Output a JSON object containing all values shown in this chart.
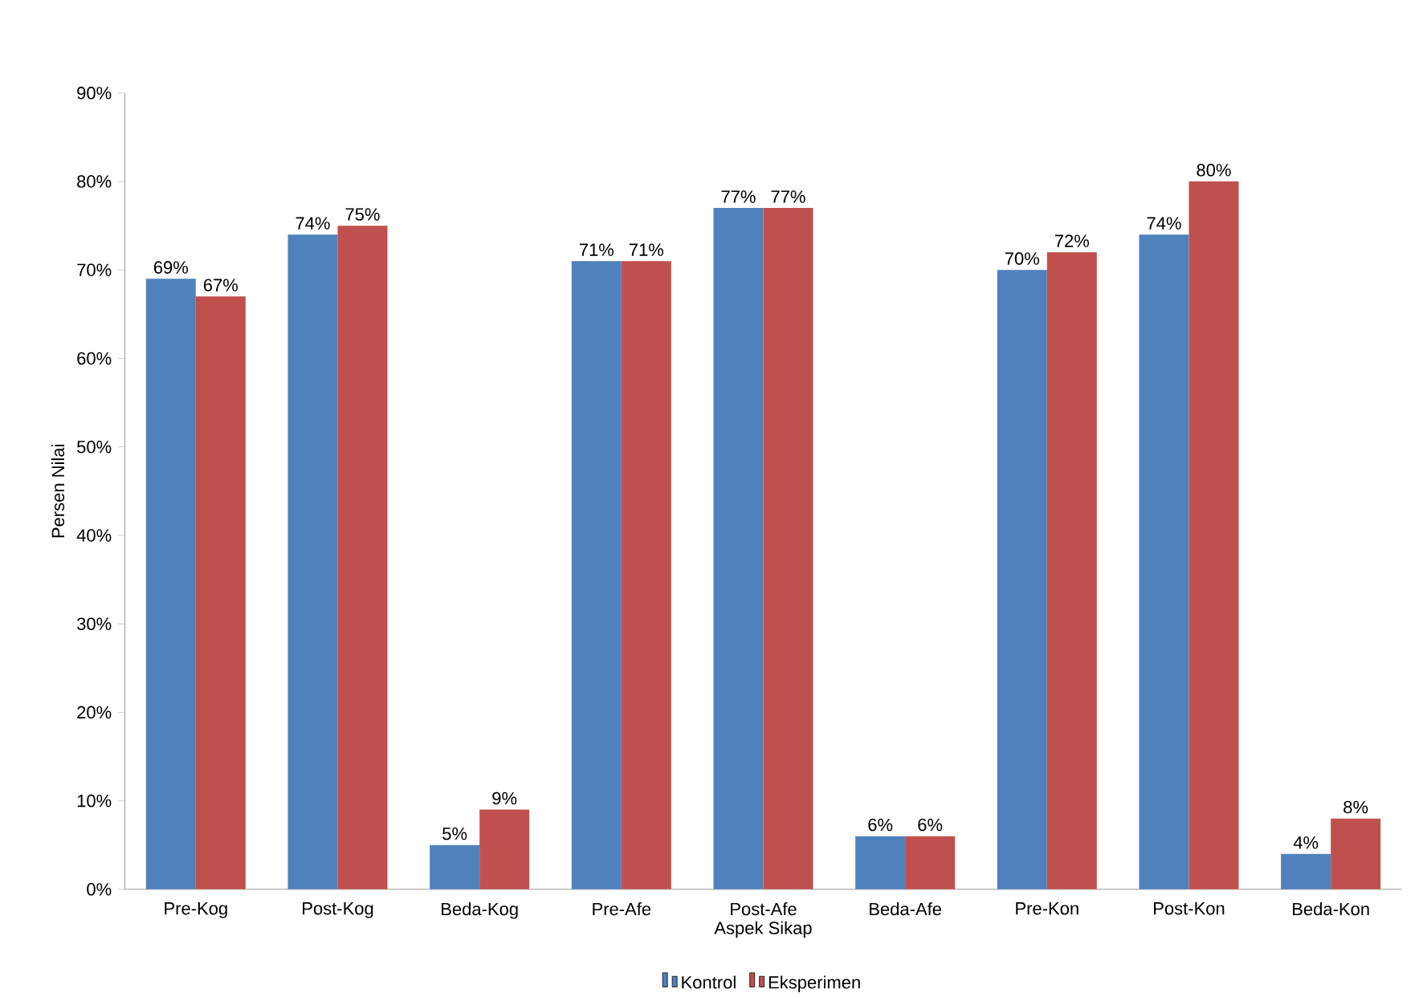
{
  "chart_data": {
    "type": "bar",
    "xlabel": "Aspek Sikap",
    "ylabel": "Persen Nilai",
    "categories": [
      "Pre-Kog",
      "Post-Kog",
      "Beda-Kog",
      "Pre-Afe",
      "Post-Afe",
      "Beda-Afe",
      "Pre-Kon",
      "Post-Kon",
      "Beda-Kon"
    ],
    "series": [
      {
        "name": "Kontrol",
        "color": "#4f81bd",
        "values": [
          69,
          74,
          5,
          71,
          77,
          6,
          70,
          74,
          4
        ],
        "value_labels": [
          "69%",
          "74%",
          "5%",
          "71%",
          "77%",
          "6%",
          "70%",
          "74%",
          "4%"
        ]
      },
      {
        "name": "Eksperimen",
        "color": "#c0504d",
        "values": [
          67,
          75,
          9,
          71,
          77,
          6,
          72,
          80,
          8
        ],
        "value_labels": [
          "67%",
          "75%",
          "9%",
          "71%",
          "77%",
          "6%",
          "72%",
          "80%",
          "8%"
        ]
      }
    ],
    "ylim": [
      0,
      90
    ],
    "yticks": [
      {
        "value": 0,
        "label": "0%"
      },
      {
        "value": 10,
        "label": "10%"
      },
      {
        "value": 20,
        "label": "20%"
      },
      {
        "value": 30,
        "label": "30%"
      },
      {
        "value": 40,
        "label": "40%"
      },
      {
        "value": 50,
        "label": "50%"
      },
      {
        "value": 60,
        "label": "60%"
      },
      {
        "value": 70,
        "label": "70%"
      },
      {
        "value": 80,
        "label": "80%"
      },
      {
        "value": 90,
        "label": "90%"
      }
    ],
    "legend": "bottom"
  }
}
